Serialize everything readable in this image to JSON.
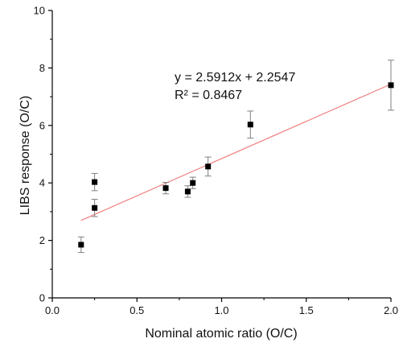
{
  "chart_data": {
    "type": "scatter",
    "xlabel": "Nominal atomic ratio (O/C)",
    "ylabel": "LIBS response (O/C)",
    "xlim": [
      0.0,
      2.0
    ],
    "ylim": [
      0,
      10
    ],
    "x_ticks": [
      "0.0",
      "0.5",
      "1.0",
      "1.5",
      "2.0"
    ],
    "y_ticks": [
      "0",
      "2",
      "4",
      "6",
      "8",
      "10"
    ],
    "grid": false,
    "points": [
      {
        "x": 0.17,
        "y": 1.85,
        "err": 0.27
      },
      {
        "x": 0.25,
        "y": 3.13,
        "err": 0.3
      },
      {
        "x": 0.25,
        "y": 4.03,
        "err": 0.3
      },
      {
        "x": 0.67,
        "y": 3.82,
        "err": 0.2
      },
      {
        "x": 0.8,
        "y": 3.7,
        "err": 0.2
      },
      {
        "x": 0.83,
        "y": 4.0,
        "err": 0.2
      },
      {
        "x": 0.92,
        "y": 4.57,
        "err": 0.33
      },
      {
        "x": 1.17,
        "y": 6.03,
        "err": 0.47
      },
      {
        "x": 2.0,
        "y": 7.4,
        "err": 0.87
      }
    ],
    "fit": {
      "slope": 2.5912,
      "intercept": 2.2547,
      "x_range": [
        0.17,
        2.0
      ],
      "color": "#f08080",
      "equation": "y = 2.5912x + 2.2547",
      "r2_label": "R² = 0.8467"
    },
    "marker_color": "#000000",
    "errorbar_color": "#808080"
  }
}
